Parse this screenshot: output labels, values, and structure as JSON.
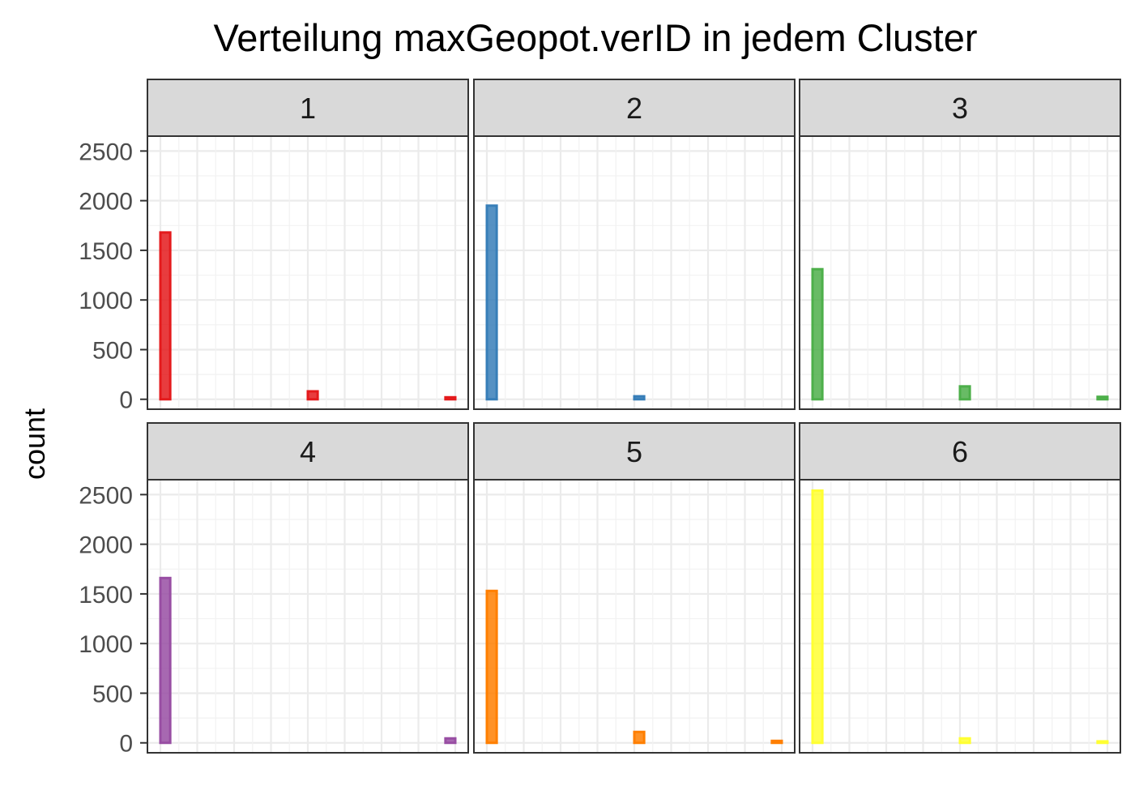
{
  "chart_data": {
    "type": "bar",
    "title": "Verteilung maxGeopot.verID in jedem Cluster",
    "xlabel": "",
    "ylabel": "count",
    "ylim": [
      -100,
      2650
    ],
    "y_ticks": [
      0,
      500,
      1000,
      1500,
      2000,
      2500
    ],
    "grid": true,
    "legend": "none",
    "bins": 30,
    "facets": [
      {
        "label": "1",
        "color": "#E41A1C",
        "values": [
          1680,
          0,
          0,
          0,
          0,
          0,
          0,
          0,
          0,
          0,
          0,
          0,
          0,
          0,
          0,
          80,
          0,
          0,
          0,
          0,
          0,
          0,
          0,
          0,
          0,
          0,
          0,
          0,
          0,
          20
        ]
      },
      {
        "label": "2",
        "color": "#377EB8",
        "values": [
          1950,
          0,
          0,
          0,
          0,
          0,
          0,
          0,
          0,
          0,
          0,
          0,
          0,
          0,
          0,
          30,
          0,
          0,
          0,
          0,
          0,
          0,
          0,
          0,
          0,
          0,
          0,
          0,
          0,
          0
        ]
      },
      {
        "label": "3",
        "color": "#4DAF4A",
        "values": [
          1310,
          0,
          0,
          0,
          0,
          0,
          0,
          0,
          0,
          0,
          0,
          0,
          0,
          0,
          0,
          130,
          0,
          0,
          0,
          0,
          0,
          0,
          0,
          0,
          0,
          0,
          0,
          0,
          0,
          25
        ]
      },
      {
        "label": "4",
        "color": "#984EA3",
        "values": [
          1660,
          0,
          0,
          0,
          0,
          0,
          0,
          0,
          0,
          0,
          0,
          0,
          0,
          0,
          0,
          0,
          0,
          0,
          0,
          0,
          0,
          0,
          0,
          0,
          0,
          0,
          0,
          0,
          0,
          45
        ]
      },
      {
        "label": "5",
        "color": "#FF7F00",
        "values": [
          1530,
          0,
          0,
          0,
          0,
          0,
          0,
          0,
          0,
          0,
          0,
          0,
          0,
          0,
          0,
          110,
          0,
          0,
          0,
          0,
          0,
          0,
          0,
          0,
          0,
          0,
          0,
          0,
          0,
          20
        ]
      },
      {
        "label": "6",
        "color": "#FFFF33",
        "values": [
          2540,
          0,
          0,
          0,
          0,
          0,
          0,
          0,
          0,
          0,
          0,
          0,
          0,
          0,
          0,
          45,
          0,
          0,
          0,
          0,
          0,
          0,
          0,
          0,
          0,
          0,
          0,
          0,
          0,
          15
        ]
      }
    ]
  }
}
